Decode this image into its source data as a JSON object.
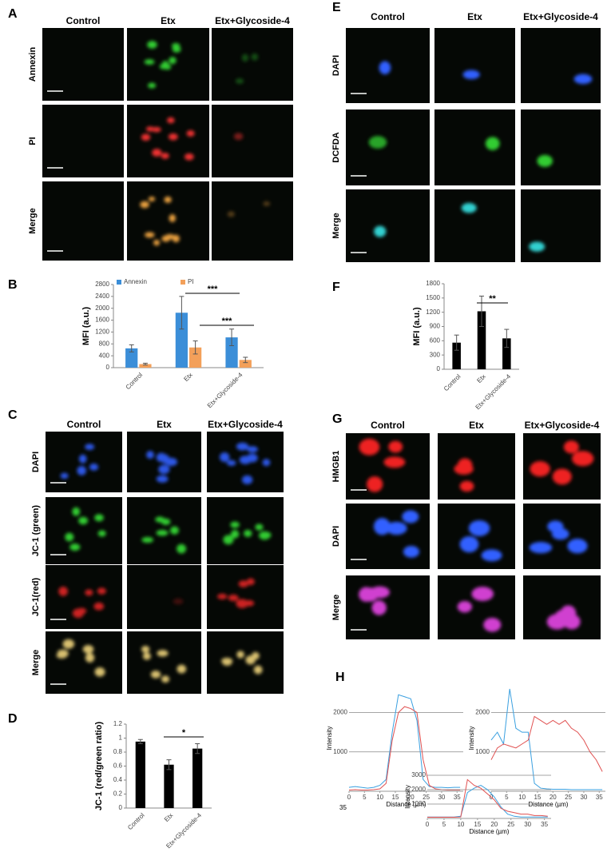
{
  "image_panels": [
    {
      "letter": "A",
      "columns": [
        "Control",
        "Etx",
        "Etx+Glycoside-4"
      ],
      "rows": [
        "Annexin",
        "PI",
        "Merge"
      ]
    },
    {
      "letter": "C",
      "columns": [
        "Control",
        "Etx",
        "Etx+Glycoside-4"
      ],
      "rows": [
        "DAPI",
        "JC-1 (green)",
        "JC-1(red)",
        "Merge"
      ]
    },
    {
      "letter": "E",
      "columns": [
        "Control",
        "Etx",
        "Etx+Glycoside-4"
      ],
      "rows": [
        "DAPI",
        "DCFDA",
        "Merge"
      ]
    },
    {
      "letter": "G",
      "columns": [
        "Control",
        "Etx",
        "Etx+Glycoside-4"
      ],
      "rows": [
        "HMGB1",
        "DAPI",
        "Merge"
      ]
    }
  ],
  "chart_data": [
    {
      "type": "bar",
      "panel": "B",
      "ylabel": "MFI (a.u.)",
      "categories": [
        "Control",
        "Etx",
        "Etx+Glycoside-4"
      ],
      "series": [
        {
          "name": "Annexin",
          "color": "#3b8ed8",
          "values": [
            650,
            1850,
            1020
          ],
          "errors": [
            120,
            550,
            280
          ]
        },
        {
          "name": "PI",
          "color": "#f3a05a",
          "values": [
            120,
            680,
            260
          ],
          "errors": [
            30,
            220,
            90
          ]
        }
      ],
      "ylim": [
        0,
        2800
      ],
      "yticks": [
        0,
        400,
        800,
        1200,
        1600,
        2000,
        2400,
        2800
      ],
      "annotations": [
        "***",
        "***"
      ]
    },
    {
      "type": "bar",
      "panel": "D",
      "ylabel": "JC-1 (red/green ratio)",
      "categories": [
        "Control",
        "Etx",
        "Etx+Glycoside-4"
      ],
      "values": [
        0.95,
        0.62,
        0.85
      ],
      "errors": [
        0.03,
        0.07,
        0.07
      ],
      "color": "#000000",
      "ylim": [
        0,
        1.2
      ],
      "yticks": [
        0,
        0.2,
        0.4,
        0.6,
        0.8,
        1,
        1.2
      ],
      "annotations": [
        "*"
      ]
    },
    {
      "type": "bar",
      "panel": "F",
      "ylabel": "MFI (a.u.)",
      "categories": [
        "Control",
        "Etx",
        "Etx+Glycoside-4"
      ],
      "values": [
        560,
        1220,
        650
      ],
      "errors": [
        160,
        320,
        190
      ],
      "color": "#000000",
      "ylim": [
        0,
        1800
      ],
      "yticks": [
        0,
        300,
        600,
        900,
        1200,
        1500,
        1800
      ],
      "annotations": [
        "**"
      ]
    },
    {
      "type": "line",
      "panel": "H",
      "xlabel": "Distance (µm)",
      "ylabel": "Intensity",
      "annotation": "35",
      "x": [
        0,
        2,
        4,
        6,
        8,
        10,
        12,
        14,
        16,
        18,
        20,
        22,
        24,
        26,
        28,
        30,
        32,
        34,
        36
      ],
      "series": [
        {
          "color": "#3aa0e0",
          "values": [
            100,
            120,
            100,
            80,
            100,
            150,
            300,
            1500,
            2450,
            2400,
            2350,
            1800,
            300,
            120,
            100,
            100,
            90,
            100,
            100
          ]
        },
        {
          "color": "#e05050",
          "values": [
            30,
            40,
            30,
            30,
            40,
            60,
            200,
            1300,
            2000,
            2150,
            2100,
            2000,
            800,
            150,
            60,
            40,
            30,
            30,
            30
          ]
        }
      ],
      "xlim": [
        0,
        37
      ],
      "xticks": [
        0,
        5,
        10,
        15,
        20,
        25,
        30,
        35
      ],
      "ylim": [
        0,
        2700
      ],
      "yticks": [
        1000,
        2000
      ],
      "grid": true
    },
    {
      "type": "line",
      "xlabel": "Distance (µm)",
      "ylabel": "Intensity",
      "x": [
        0,
        2,
        4,
        6,
        8,
        10,
        12,
        14,
        16,
        18,
        20,
        22,
        24,
        26,
        28,
        30,
        32,
        34,
        36
      ],
      "series": [
        {
          "color": "#3aa0e0",
          "values": [
            1300,
            1500,
            1200,
            2600,
            1600,
            1500,
            1500,
            200,
            80,
            60,
            50,
            50,
            50,
            40,
            40,
            40,
            40,
            40,
            40
          ]
        },
        {
          "color": "#e05050",
          "values": [
            800,
            1100,
            1200,
            1150,
            1100,
            1200,
            1300,
            1900,
            1800,
            1700,
            1800,
            1700,
            1800,
            1600,
            1500,
            1300,
            1000,
            800,
            500
          ]
        }
      ],
      "xlim": [
        0,
        37
      ],
      "xticks": [
        0,
        5,
        10,
        15,
        20,
        25,
        30,
        35
      ],
      "ylim": [
        0,
        2700
      ],
      "yticks": [
        1000,
        2000
      ],
      "grid": true
    },
    {
      "type": "line",
      "xlabel": "Distance (µm)",
      "ylabel": "Intensity",
      "x": [
        0,
        2,
        4,
        6,
        8,
        10,
        12,
        14,
        16,
        18,
        20,
        22,
        24,
        26,
        28,
        30,
        32,
        34,
        36
      ],
      "series": [
        {
          "color": "#3aa0e0",
          "values": [
            100,
            100,
            100,
            100,
            100,
            150,
            1800,
            2100,
            2300,
            2000,
            1500,
            800,
            300,
            150,
            100,
            100,
            100,
            100,
            100
          ]
        },
        {
          "color": "#e05050",
          "values": [
            80,
            80,
            80,
            80,
            80,
            100,
            2700,
            2300,
            2100,
            1700,
            1300,
            700,
            500,
            400,
            300,
            300,
            200,
            200,
            150
          ]
        }
      ],
      "xlim": [
        0,
        37
      ],
      "xticks": [
        0,
        5,
        10,
        15,
        20,
        25,
        30,
        35
      ],
      "ylim": [
        0,
        3000
      ],
      "yticks": [
        1000,
        2000,
        3000
      ],
      "grid": true
    }
  ]
}
